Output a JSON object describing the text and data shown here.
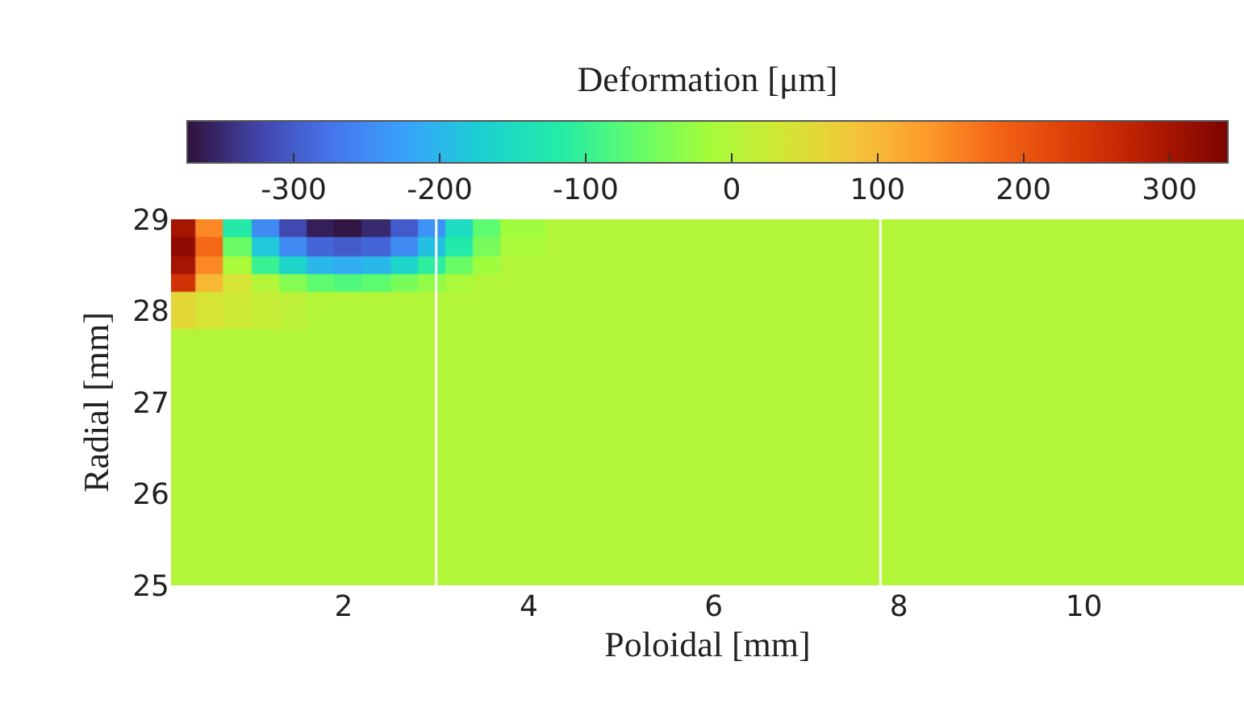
{
  "chart_data": {
    "type": "heatmap",
    "xlabel": "Poloidal [mm]",
    "ylabel": "Radial [mm]",
    "clabel": "Deformation [μm]",
    "x": [
      0.25,
      0.55,
      0.85,
      1.15,
      1.45,
      1.75,
      2.05,
      2.35,
      2.65,
      2.95,
      3.25,
      3.55,
      3.85,
      4.5,
      6,
      8,
      10,
      11.5
    ],
    "y": [
      28.9,
      28.7,
      28.5,
      28.3,
      28.1,
      27.5,
      26.5,
      25.5
    ],
    "cells": [
      [
        300,
        150,
        -120,
        -250,
        -320,
        -360,
        -370,
        -350,
        -300,
        -240,
        -150,
        -70,
        -20,
        0,
        0,
        0,
        0,
        0
      ],
      [
        320,
        180,
        -60,
        -180,
        -250,
        -290,
        -300,
        -290,
        -250,
        -190,
        -120,
        -50,
        -10,
        0,
        0,
        0,
        0,
        0
      ],
      [
        300,
        150,
        -10,
        -100,
        -160,
        -200,
        -210,
        -200,
        -160,
        -110,
        -60,
        -20,
        0,
        0,
        0,
        0,
        0,
        0
      ],
      [
        250,
        100,
        40,
        0,
        -40,
        -70,
        -80,
        -70,
        -50,
        -30,
        -10,
        0,
        0,
        0,
        0,
        0,
        0,
        0
      ],
      [
        60,
        40,
        30,
        20,
        10,
        0,
        0,
        0,
        0,
        0,
        0,
        0,
        0,
        0,
        0,
        0,
        0,
        0
      ],
      [
        0,
        0,
        0,
        0,
        0,
        0,
        0,
        0,
        0,
        0,
        0,
        0,
        0,
        0,
        0,
        0,
        0,
        0
      ],
      [
        0,
        0,
        0,
        0,
        0,
        0,
        0,
        0,
        0,
        0,
        0,
        0,
        0,
        0,
        0,
        0,
        0,
        0
      ],
      [
        0,
        0,
        0,
        0,
        0,
        0,
        0,
        0,
        0,
        0,
        0,
        0,
        0,
        0,
        0,
        0,
        0,
        0
      ]
    ],
    "xlim": [
      0.134,
      11.73
    ],
    "ylim": [
      25,
      29
    ],
    "xticks": [
      2,
      4,
      6,
      8,
      10
    ],
    "yticks": [
      25,
      26,
      27,
      28,
      29
    ],
    "clim": [
      -373,
      340
    ],
    "cticks": [
      -300,
      -200,
      -100,
      0,
      100,
      200,
      300
    ],
    "ref_lines": [
      {
        "axis": "x",
        "value": 3.0,
        "color": "#ffffff"
      },
      {
        "axis": "x",
        "value": 7.8,
        "color": "#ffffff"
      }
    ]
  }
}
